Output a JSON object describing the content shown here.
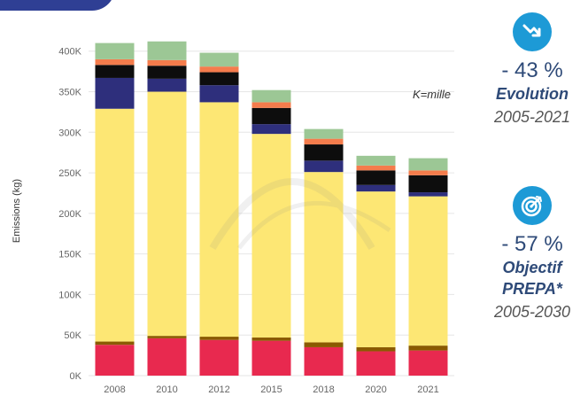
{
  "chart_data": {
    "type": "bar",
    "stacked": true,
    "title": "",
    "xlabel": "",
    "ylabel": "Emissions (kg)",
    "ylim": [
      0,
      415000
    ],
    "yticks": [
      "0K",
      "50K",
      "100K",
      "150K",
      "200K",
      "250K",
      "300K",
      "350K",
      "400K"
    ],
    "categories": [
      "2008",
      "2010",
      "2012",
      "2015",
      "2018",
      "2020",
      "2021"
    ],
    "series": [
      {
        "color": "#e8294f",
        "values": [
          38000,
          46000,
          44000,
          43000,
          35000,
          30000,
          31000
        ]
      },
      {
        "color": "#8a5a00",
        "values": [
          4000,
          3000,
          4000,
          4000,
          6000,
          5000,
          6000
        ]
      },
      {
        "color": "#fde774",
        "values": [
          287000,
          301000,
          289000,
          251000,
          210000,
          192000,
          184000
        ]
      },
      {
        "color": "#2e2f7c",
        "values": [
          38000,
          16000,
          21000,
          12000,
          14000,
          8000,
          5000
        ]
      },
      {
        "color": "#0d0d0d",
        "values": [
          16000,
          16000,
          16000,
          20000,
          20000,
          18000,
          21000
        ]
      },
      {
        "color": "#f47c4c",
        "values": [
          7000,
          7000,
          7000,
          7000,
          7000,
          6000,
          6000
        ]
      },
      {
        "color": "#9cc795",
        "values": [
          20000,
          23000,
          17000,
          15000,
          12000,
          12000,
          15000
        ]
      }
    ]
  },
  "unit_note": "K=mille",
  "metrics": [
    {
      "icon": "trend-down-icon",
      "percent": "- 43 %",
      "label_lines": [
        "Evolution"
      ],
      "period": "2005-2021",
      "color": "#1d9ad6"
    },
    {
      "icon": "target-icon",
      "percent": "- 57 %",
      "label_lines": [
        "Objectif",
        "PREPA*"
      ],
      "period": "2005-2030",
      "color": "#1d9ad6"
    }
  ]
}
